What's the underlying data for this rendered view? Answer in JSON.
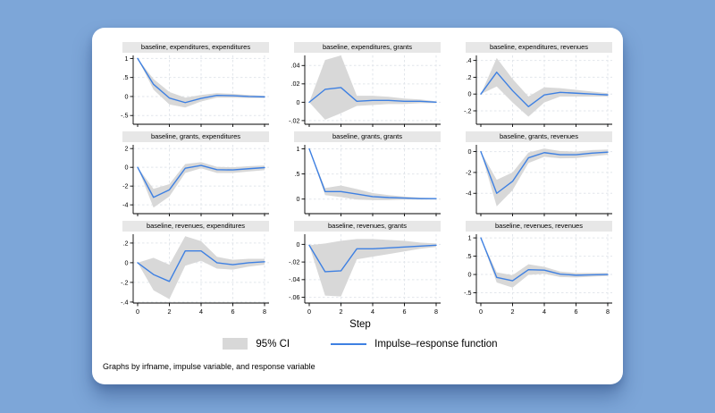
{
  "background_color": "#7da6d8",
  "card_color": "#ffffff",
  "colors": {
    "irf_line": "#3e80e2",
    "ci_fill": "#d8d8d8",
    "title_strip_bg": "#e7e7e7",
    "grid_line": "#e2e6eb",
    "axis": "#000000"
  },
  "figure": {
    "xlabel": "Step",
    "caption": "Graphs by irfname, impulse variable, and response variable",
    "legend": {
      "ci_label": "95% CI",
      "irf_label": "Impulse–response function"
    }
  },
  "chart_data": {
    "type": "line",
    "layout": "3x3-small-multiples",
    "x": [
      0,
      1,
      2,
      3,
      4,
      5,
      6,
      7,
      8
    ],
    "xticks": [
      0,
      2,
      4,
      6,
      8
    ],
    "xlabel": "Step",
    "legend": [
      "95% CI",
      "Impulse–response function"
    ],
    "legend_position": "bottom-center",
    "grid": "dashed at axis ticks",
    "note": "Graphs by irfname, impulse variable, and response variable",
    "subplots": [
      {
        "title": "baseline, expenditures, expenditures",
        "ytick_values": [
          1,
          0.5,
          0,
          -0.5
        ],
        "ytick_labels": [
          "1",
          ".5",
          "0",
          "-.5"
        ],
        "ylim": [
          -0.73,
          1.08
        ],
        "irf": [
          1,
          0.32,
          -0.04,
          -0.16,
          -0.05,
          0.03,
          0.02,
          0.0,
          -0.01
        ],
        "ci_lower": [
          1,
          0.18,
          -0.21,
          -0.29,
          -0.13,
          -0.03,
          -0.03,
          -0.04,
          -0.04
        ],
        "ci_upper": [
          1,
          0.46,
          0.12,
          -0.03,
          0.04,
          0.09,
          0.07,
          0.04,
          0.02
        ]
      },
      {
        "title": "baseline, expenditures, grants",
        "ytick_values": [
          0.04,
          0.02,
          0,
          -0.02
        ],
        "ytick_labels": [
          ".04",
          ".02",
          "0",
          "-.02"
        ],
        "ylim": [
          -0.024,
          0.051
        ],
        "irf": [
          0,
          0.014,
          0.016,
          0.001,
          0.002,
          0.002,
          0.001,
          0.001,
          0.0
        ],
        "ci_lower": [
          0,
          -0.019,
          -0.012,
          -0.004,
          -0.003,
          -0.002,
          -0.002,
          -0.001,
          -0.001
        ],
        "ci_upper": [
          0,
          0.046,
          0.052,
          0.007,
          0.007,
          0.006,
          0.004,
          0.003,
          0.001
        ]
      },
      {
        "title": "baseline, expenditures, revenues",
        "ytick_values": [
          0.4,
          0.2,
          0,
          -0.2
        ],
        "ytick_labels": [
          ".4",
          ".2",
          "0",
          "-.2"
        ],
        "ylim": [
          -0.36,
          0.46
        ],
        "irf": [
          0,
          0.26,
          0.04,
          -0.15,
          -0.01,
          0.02,
          0.01,
          0.0,
          -0.01
        ],
        "ci_lower": [
          0,
          0.09,
          -0.1,
          -0.27,
          -0.1,
          -0.03,
          -0.03,
          -0.03,
          -0.03
        ],
        "ci_upper": [
          0,
          0.43,
          0.18,
          -0.03,
          0.08,
          0.07,
          0.05,
          0.03,
          0.01
        ]
      },
      {
        "title": "baseline, grants, expenditures",
        "ytick_values": [
          2,
          0,
          -2,
          -4
        ],
        "ytick_labels": [
          "2",
          "0",
          "-2",
          "-4"
        ],
        "ylim": [
          -4.94,
          2.4
        ],
        "irf": [
          0,
          -3.2,
          -2.4,
          -0.1,
          0.2,
          -0.25,
          -0.28,
          -0.15,
          -0.03
        ],
        "ci_lower": [
          0,
          -4.3,
          -3.1,
          -0.6,
          -0.1,
          -0.6,
          -0.6,
          -0.45,
          -0.3
        ],
        "ci_upper": [
          0,
          -2.3,
          -1.8,
          0.35,
          0.55,
          0.05,
          0.0,
          0.12,
          0.2
        ]
      },
      {
        "title": "baseline, grants, grants",
        "ytick_values": [
          1,
          0.5,
          0
        ],
        "ytick_labels": [
          "1",
          ".5",
          "0"
        ],
        "ylim": [
          -0.29,
          1.08
        ],
        "irf": [
          1,
          0.15,
          0.15,
          0.1,
          0.05,
          0.03,
          0.02,
          0.01,
          0.01
        ],
        "ci_lower": [
          1,
          0.08,
          0.04,
          -0.01,
          -0.02,
          -0.02,
          -0.01,
          -0.01,
          -0.01
        ],
        "ci_upper": [
          1,
          0.22,
          0.27,
          0.2,
          0.12,
          0.08,
          0.05,
          0.03,
          0.02
        ]
      },
      {
        "title": "baseline, grants, revenues",
        "ytick_values": [
          0,
          -2,
          -4
        ],
        "ytick_labels": [
          "0",
          "-2",
          "-4"
        ],
        "ylim": [
          -5.95,
          0.65
        ],
        "irf": [
          0,
          -4.0,
          -2.85,
          -0.6,
          -0.1,
          -0.3,
          -0.3,
          -0.15,
          -0.05
        ],
        "ci_lower": [
          0,
          -5.25,
          -3.7,
          -1.1,
          -0.5,
          -0.65,
          -0.62,
          -0.45,
          -0.3
        ],
        "ci_upper": [
          0,
          -2.7,
          -2.0,
          -0.1,
          0.3,
          0.05,
          0.0,
          0.15,
          0.2
        ]
      },
      {
        "title": "baseline, revenues, expenditures",
        "ytick_values": [
          0.2,
          0,
          -0.2,
          -0.4
        ],
        "ytick_labels": [
          ".2",
          "0",
          "-.2",
          "-.4"
        ],
        "ylim": [
          -0.41,
          0.29
        ],
        "irf": [
          0,
          -0.12,
          -0.19,
          0.12,
          0.12,
          0.0,
          -0.02,
          0.0,
          0.01
        ],
        "ci_lower": [
          0,
          -0.28,
          -0.37,
          -0.03,
          0.02,
          -0.06,
          -0.07,
          -0.04,
          -0.02
        ],
        "ci_upper": [
          0,
          0.05,
          -0.02,
          0.27,
          0.22,
          0.06,
          0.03,
          0.04,
          0.04
        ]
      },
      {
        "title": "baseline, revenues, grants",
        "ytick_values": [
          0,
          -0.02,
          -0.04,
          -0.06
        ],
        "ytick_labels": [
          "0",
          "-.02",
          "-.04",
          "-.06"
        ],
        "ylim": [
          -0.0665,
          0.0115
        ],
        "irf": [
          -0.001,
          -0.031,
          -0.03,
          -0.005,
          -0.005,
          -0.004,
          -0.003,
          -0.002,
          -0.001
        ],
        "ci_lower": [
          -0.001,
          -0.058,
          -0.059,
          -0.017,
          -0.014,
          -0.011,
          -0.008,
          -0.005,
          -0.003
        ],
        "ci_upper": [
          -0.001,
          0.001,
          0.004,
          0.006,
          0.006,
          0.005,
          0.004,
          0.002,
          0.001
        ]
      },
      {
        "title": "baseline, revenues, revenues",
        "ytick_values": [
          1,
          0.5,
          0,
          -0.5
        ],
        "ytick_labels": [
          "1",
          ".5",
          "0",
          "-.5"
        ],
        "ylim": [
          -0.78,
          1.1
        ],
        "irf": [
          1,
          -0.08,
          -0.17,
          0.13,
          0.12,
          0.01,
          -0.02,
          -0.01,
          0.0
        ],
        "ci_lower": [
          1,
          -0.22,
          -0.36,
          -0.01,
          0.02,
          -0.07,
          -0.08,
          -0.06,
          -0.04
        ],
        "ci_upper": [
          1,
          0.06,
          -0.02,
          0.28,
          0.21,
          0.08,
          0.04,
          0.04,
          0.04
        ]
      }
    ]
  }
}
